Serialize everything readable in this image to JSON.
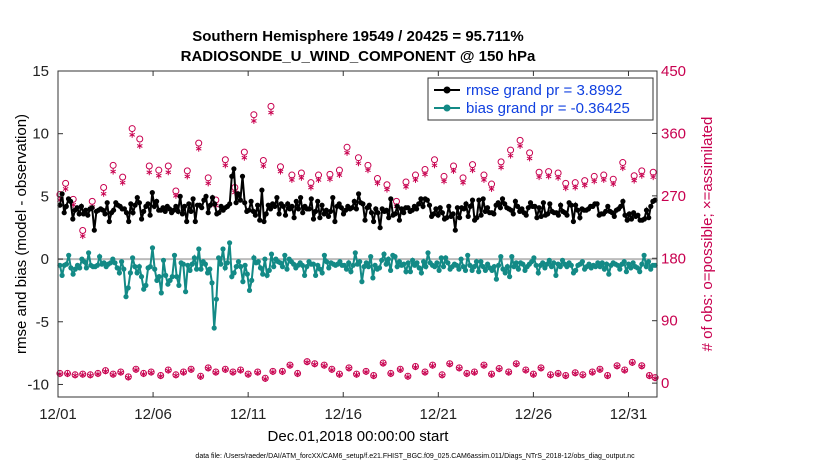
{
  "chart_data": {
    "type": "line",
    "title_line1": "Southern Hemisphere 19549 / 20425 = 95.711%",
    "title_line2": "RADIOSONDE_U_WIND_COMPONENT @ 150 hPa",
    "xlabel": "Dec.01,2018 00:00:00 start",
    "ylabel_left": "rmse and bias (model - observation)",
    "ylabel_right": "# of obs: o=possible; ×=assimilated",
    "x_ticks": [
      "12/01",
      "12/06",
      "12/11",
      "12/16",
      "12/21",
      "12/26",
      "12/31"
    ],
    "xlim": [
      0,
      31.5
    ],
    "ylim_left": [
      -11,
      15
    ],
    "ylim_right": [
      -20,
      450
    ],
    "y_ticks_left": [
      "15",
      "10",
      "5",
      "0",
      "-5",
      "-10"
    ],
    "y_ticks_right": [
      "450",
      "360",
      "270",
      "180",
      "90",
      "0"
    ],
    "colors": {
      "rmse": "#000000",
      "bias": "#138a86",
      "obs": "#c8004f",
      "zero": "#bbbbbb",
      "legend_text": "#1040e0"
    },
    "series": [
      {
        "name": "rmse",
        "legend": "rmse grand pr = 3.8992",
        "values": [
          4.3,
          5.2,
          3.7,
          4.2,
          4.8,
          4.6,
          3.2,
          3.9,
          4.1,
          3.6,
          4.2,
          3.6,
          3.9,
          3.5,
          4.0,
          4.1,
          2.3,
          3.8,
          3.9,
          4.0,
          3.9,
          3.6,
          4.5,
          3.0,
          3.7,
          3.9,
          4.5,
          4.3,
          4.2,
          4.0,
          4.0,
          3.7,
          3.0,
          4.4,
          3.7,
          4.3,
          4.9,
          4.5,
          3.2,
          3.8,
          4.2,
          4.4,
          3.5,
          5.3,
          4.2,
          4.6,
          3.9,
          3.9,
          4.1,
          3.8,
          4.2,
          4.0,
          3.7,
          3.9,
          4.2,
          3.8,
          5.0,
          3.6,
          4.2,
          3.0,
          4.4,
          3.8,
          4.8,
          3.0,
          4.3,
          4.3,
          4.1,
          4.7,
          5.0,
          3.7,
          4.3,
          4.9,
          4.4,
          3.6,
          3.7,
          4.2,
          3.9,
          4.1,
          4.2,
          4.4,
          6.6,
          7.2,
          4.5,
          5.2,
          4.7,
          6.6,
          4.5,
          3.8,
          3.9,
          4.6,
          3.8,
          3.5,
          4.3,
          3.1,
          5.5,
          3.0,
          3.6,
          4.3,
          4.0,
          4.4,
          4.2,
          4.9,
          3.6,
          4.4,
          4.2,
          3.5,
          4.4,
          4.0,
          4.2,
          3.3,
          4.6,
          4.0,
          4.9,
          3.7,
          4.2,
          4.0,
          4.0,
          4.8,
          3.2,
          3.8,
          4.6,
          3.3,
          4.3,
          3.6,
          3.9,
          3.4,
          3.8,
          4.9,
          3.0,
          4.2,
          4.4,
          4.1,
          3.6,
          3.9,
          4.2,
          4.0,
          4.1,
          4.6,
          4.0,
          5.2,
          4.5,
          4.4,
          3.1,
          4.1,
          4.3,
          3.7,
          3.0,
          4.0,
          3.7,
          2.5,
          4.0,
          3.8,
          3.9,
          3.3,
          4.8,
          3.5,
          3.6,
          4.2,
          3.1,
          4.0,
          3.7,
          4.1,
          4.1,
          3.8,
          3.9,
          4.2,
          4.0,
          4.4,
          4.8,
          4.2,
          4.8,
          4.7,
          4.3,
          3.4,
          3.6,
          4.0,
          3.5,
          4.1,
          3.7,
          3.2,
          3.3,
          4.2,
          3.4,
          3.6,
          2.3,
          4.1,
          3.3,
          4.1,
          4.0,
          4.4,
          3.4,
          4.2,
          4.7,
          3.1,
          3.3,
          4.7,
          3.5,
          4.8,
          3.8,
          4.1,
          3.7,
          3.7,
          3.6,
          4.3,
          4.5,
          4.1,
          4.8,
          4.4,
          4.1,
          4.0,
          3.9,
          3.6,
          4.6,
          4.2,
          3.8,
          4.0,
          3.7,
          3.5,
          4.1,
          4.5,
          4.2,
          4.2,
          3.3,
          4.1,
          3.4,
          4.5,
          3.5,
          3.6,
          4.4,
          3.8,
          3.7,
          3.7,
          3.5,
          4.3,
          3.8,
          3.7,
          3.5,
          4.5,
          4.3,
          3.0,
          4.3,
          3.9,
          3.3,
          4.0,
          3.9,
          3.9,
          4.0,
          4.2,
          4.2,
          4.4,
          4.4,
          3.5,
          3.6,
          3.6,
          3.8,
          4.2,
          3.8,
          3.7,
          3.4,
          3.9,
          4.0,
          4.2,
          4.6,
          3.5,
          3.1,
          3.6,
          3.2,
          3.7,
          3.4,
          3.5,
          3.1,
          3.1,
          3.2,
          3.9,
          3.3,
          4.2,
          4.6,
          4.7
        ]
      },
      {
        "name": "bias",
        "legend": "bias grand pr = -0.36425",
        "values": [
          -0.5,
          -1.3,
          -0.5,
          -0.4,
          0.3,
          -0.7,
          -1.2,
          -0.8,
          -0.5,
          -0.7,
          0.0,
          -0.2,
          -0.7,
          0.5,
          -0.5,
          -0.6,
          -0.6,
          -0.5,
          0.2,
          -0.4,
          -0.3,
          -0.6,
          -0.4,
          -0.3,
          0.0,
          -0.3,
          -0.7,
          -1.1,
          -0.2,
          -0.8,
          -3.0,
          -2.3,
          -1.1,
          0.1,
          -0.6,
          -1.1,
          -0.6,
          -1.4,
          -2.4,
          -2.1,
          -0.7,
          -0.6,
          0.9,
          -0.8,
          -1.7,
          -1.4,
          -2.7,
          -0.1,
          -1.3,
          -2.0,
          -1.7,
          -1.4,
          0.3,
          -1.4,
          -2.1,
          -0.3,
          -0.4,
          -2.6,
          -0.5,
          -0.9,
          -0.4,
          0.1,
          -0.8,
          0.8,
          -0.8,
          -0.2,
          -0.4,
          -1.1,
          -0.8,
          -1.9,
          -5.5,
          -3.2,
          0.1,
          -0.4,
          0.8,
          -0.7,
          -0.3,
          1.3,
          -1.4,
          -1.1,
          -0.6,
          -0.2,
          -0.6,
          -1.8,
          -0.5,
          -1.2,
          -2.5,
          -1.7,
          0.1,
          -0.3,
          -0.2,
          -0.7,
          -1.2,
          0.0,
          -1.3,
          -0.9,
          0.4,
          -0.6,
          0.0,
          -0.2,
          -0.3,
          -0.6,
          0.3,
          -0.8,
          0.0,
          -0.2,
          -0.4,
          -0.7,
          -0.5,
          -0.3,
          -0.5,
          -1.3,
          -0.6,
          -0.2,
          -0.4,
          -0.4,
          -1.3,
          -0.5,
          -0.8,
          -1.1,
          0.3,
          -0.2,
          -0.7,
          -0.3,
          -0.4,
          -0.5,
          -0.4,
          -0.2,
          -0.5,
          -0.5,
          -0.8,
          -0.3,
          -1.0,
          -0.5,
          0.5,
          -0.4,
          -0.2,
          -1.8,
          -0.6,
          -0.3,
          -0.6,
          0.2,
          -1.5,
          -0.5,
          -0.8,
          -0.7,
          -0.1,
          0.4,
          -0.4,
          0.0,
          -0.9,
          0.3,
          0.2,
          -0.6,
          -0.2,
          -0.5,
          -0.4,
          -1.0,
          -0.3,
          -1.0,
          -0.1,
          -0.5,
          -0.3,
          -0.7,
          -1.1,
          -0.2,
          -0.6,
          0.5,
          -0.3,
          -0.5,
          -0.6,
          -0.3,
          -0.9,
          0.1,
          -0.6,
          0.1,
          -0.3,
          -0.8,
          -0.6,
          -0.4,
          -0.5,
          -0.8,
          0.0,
          -0.6,
          -0.9,
          0.3,
          -0.5,
          -0.9,
          -0.6,
          -0.2,
          -1.0,
          -0.2,
          -0.6,
          -0.9,
          -0.4,
          -0.7,
          -0.9,
          -0.6,
          -1.6,
          -0.5,
          0.2,
          -0.8,
          -1.1,
          -0.6,
          -1.4,
          0.2,
          -0.6,
          -0.3,
          -0.8,
          -0.3,
          -0.4,
          -0.9,
          -0.6,
          -0.4,
          -0.2,
          0.1,
          -0.5,
          -1.1,
          -0.5,
          -0.3,
          -0.7,
          -0.4,
          -0.1,
          -0.6,
          -0.3,
          -1.3,
          -0.4,
          -0.6,
          -0.1,
          -0.4,
          -0.6,
          -0.3,
          -0.5,
          -1.1,
          -0.9,
          -0.5,
          -0.4,
          -0.2,
          -0.8,
          -0.6,
          -0.4,
          -0.7,
          -0.5,
          -0.6,
          -0.3,
          -0.6,
          -0.3,
          -0.8,
          -0.4,
          -1.2,
          -0.5,
          -0.3,
          -0.4,
          -0.5,
          -0.8,
          -0.4,
          -0.2,
          -1.0,
          -0.4,
          -0.7,
          -0.3,
          -0.6,
          -0.7,
          -1.0,
          -0.4,
          0.3,
          -0.6,
          -0.2,
          -0.8,
          -0.5,
          -0.5
        ]
      },
      {
        "name": "obs_possible",
        "marker": "o",
        "xs": [
          0.1,
          0.4,
          0.8,
          1.3,
          1.8,
          2.4,
          2.9,
          3.4,
          3.9,
          4.3,
          4.8,
          5.3,
          5.8,
          6.2,
          6.8,
          7.4,
          7.9,
          8.3,
          8.8,
          9.3,
          9.8,
          10.3,
          10.8,
          11.2,
          11.7,
          12.3,
          12.8,
          13.3,
          13.7,
          14.3,
          14.8,
          15.2,
          15.8,
          16.3,
          16.8,
          17.3,
          17.8,
          18.3,
          18.8,
          19.3,
          19.8,
          20.3,
          20.8,
          21.3,
          21.8,
          22.4,
          22.8,
          23.3,
          23.8,
          24.3,
          24.8,
          25.3,
          25.8,
          26.3,
          26.7,
          27.2,
          27.7,
          28.2,
          28.7,
          29.2,
          29.7,
          30.3,
          30.7,
          31.3
        ],
        "values": [
          272,
          288,
          265,
          220,
          262,
          282,
          314,
          297,
          367,
          352,
          313,
          307,
          313,
          277,
          306,
          346,
          296,
          264,
          322,
          282,
          333,
          387,
          321,
          399,
          312,
          300,
          303,
          289,
          300,
          301,
          307,
          340,
          325,
          314,
          295,
          286,
          262,
          290,
          300,
          308,
          322,
          298,
          313,
          296,
          315,
          300,
          287,
          319,
          336,
          350,
          332,
          304,
          305,
          303,
          288,
          289,
          292,
          298,
          300,
          294,
          318,
          299,
          306,
          304
        ]
      },
      {
        "name": "obs_assimilated",
        "marker": "*",
        "xs": [
          0.1,
          0.4,
          0.8,
          1.3,
          1.8,
          2.4,
          2.9,
          3.4,
          3.9,
          4.3,
          4.8,
          5.3,
          5.8,
          6.2,
          6.8,
          7.4,
          7.9,
          8.3,
          8.8,
          9.3,
          9.8,
          10.3,
          10.8,
          11.2,
          11.7,
          12.3,
          12.8,
          13.3,
          13.7,
          14.3,
          14.8,
          15.2,
          15.8,
          16.3,
          16.8,
          17.3,
          17.8,
          18.3,
          18.8,
          19.3,
          19.8,
          20.3,
          20.8,
          21.3,
          21.8,
          22.4,
          22.8,
          23.3,
          23.8,
          24.3,
          24.8,
          25.3,
          25.8,
          26.3,
          26.7,
          27.2,
          27.7,
          28.2,
          28.7,
          29.2,
          29.7,
          30.3,
          30.7,
          31.3
        ],
        "values": [
          264,
          280,
          257,
          212,
          254,
          273,
          305,
          289,
          358,
          342,
          304,
          299,
          304,
          270,
          298,
          338,
          288,
          256,
          314,
          275,
          325,
          378,
          313,
          390,
          305,
          293,
          296,
          282,
          293,
          294,
          300,
          332,
          317,
          307,
          288,
          279,
          255,
          283,
          293,
          301,
          314,
          291,
          306,
          289,
          307,
          293,
          280,
          311,
          328,
          342,
          324,
          297,
          298,
          296,
          281,
          282,
          285,
          291,
          293,
          287,
          310,
          292,
          299,
          297
        ]
      },
      {
        "name": "obs_low_possible",
        "marker": "o",
        "xs": [
          0.1,
          0.5,
          0.9,
          1.3,
          1.7,
          2.1,
          2.5,
          2.9,
          3.3,
          3.7,
          4.1,
          4.5,
          4.9,
          5.4,
          5.8,
          6.2,
          6.6,
          7.0,
          7.5,
          7.9,
          8.3,
          8.8,
          9.2,
          9.6,
          10.0,
          10.5,
          10.9,
          11.3,
          11.8,
          12.2,
          12.6,
          13.1,
          13.5,
          14.0,
          14.4,
          14.8,
          15.3,
          15.7,
          16.2,
          16.6,
          17.1,
          17.5,
          18.0,
          18.4,
          18.8,
          19.3,
          19.7,
          20.2,
          20.6,
          21.1,
          21.5,
          21.9,
          22.4,
          22.8,
          23.2,
          23.7,
          24.1,
          24.6,
          25.0,
          25.4,
          25.9,
          26.3,
          26.7,
          27.2,
          27.6,
          28.1,
          28.5,
          28.9,
          29.4,
          29.8,
          30.2,
          30.7,
          31.1,
          31.4
        ],
        "values": [
          14,
          14,
          12,
          13,
          12,
          14,
          18,
          13,
          16,
          9,
          20,
          14,
          16,
          11,
          19,
          12,
          16,
          20,
          10,
          22,
          16,
          20,
          16,
          19,
          13,
          16,
          7,
          17,
          17,
          26,
          14,
          31,
          28,
          26,
          20,
          13,
          22,
          13,
          17,
          11,
          29,
          14,
          20,
          10,
          24,
          16,
          26,
          12,
          28,
          22,
          14,
          16,
          26,
          13,
          21,
          16,
          28,
          19,
          13,
          22,
          12,
          14,
          11,
          15,
          12,
          16,
          20,
          11,
          25,
          19,
          30,
          25,
          11,
          8
        ]
      },
      {
        "name": "obs_low_assimilated",
        "marker": "*",
        "xs": [
          0.1,
          0.5,
          0.9,
          1.3,
          1.7,
          2.1,
          2.5,
          2.9,
          3.3,
          3.7,
          4.1,
          4.5,
          4.9,
          5.4,
          5.8,
          6.2,
          6.6,
          7.0,
          7.5,
          7.9,
          8.3,
          8.8,
          9.2,
          9.6,
          10.0,
          10.5,
          10.9,
          11.3,
          11.8,
          12.2,
          12.6,
          13.1,
          13.5,
          14.0,
          14.4,
          14.8,
          15.3,
          15.7,
          16.2,
          16.6,
          17.1,
          17.5,
          18.0,
          18.4,
          18.8,
          19.3,
          19.7,
          20.2,
          20.6,
          21.1,
          21.5,
          21.9,
          22.4,
          22.8,
          23.2,
          23.7,
          24.1,
          24.6,
          25.0,
          25.4,
          25.9,
          26.3,
          26.7,
          27.2,
          27.6,
          28.1,
          28.5,
          28.9,
          29.4,
          29.8,
          30.2,
          30.7,
          31.1,
          31.4
        ],
        "values": [
          13,
          13,
          11,
          12,
          11,
          13,
          17,
          12,
          15,
          8,
          19,
          13,
          15,
          10,
          18,
          11,
          15,
          19,
          9,
          21,
          15,
          19,
          15,
          18,
          12,
          15,
          6,
          16,
          16,
          25,
          13,
          30,
          27,
          25,
          19,
          12,
          21,
          12,
          16,
          10,
          28,
          13,
          19,
          9,
          23,
          15,
          25,
          11,
          27,
          21,
          13,
          15,
          25,
          12,
          20,
          15,
          27,
          18,
          12,
          21,
          11,
          13,
          10,
          14,
          11,
          15,
          19,
          10,
          24,
          18,
          29,
          24,
          10,
          7
        ]
      }
    ],
    "footer": "data file: /Users/raeder/DAI/ATM_forcXX/CAM6_setup/f.e21.FHIST_BGC.f09_025.CAM6assim.011/Diags_NTrS_2018-12/obs_diag_output.nc"
  }
}
